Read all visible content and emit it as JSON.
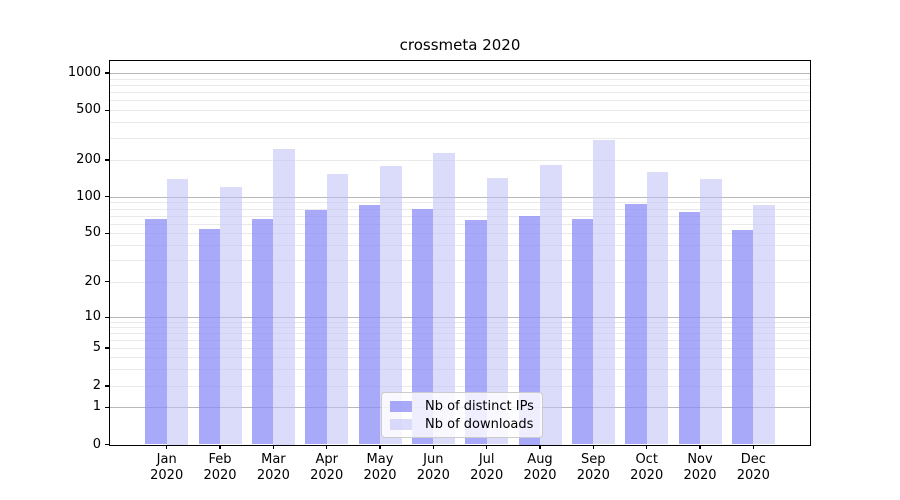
{
  "chart_data": {
    "type": "bar",
    "title": "crossmeta 2020",
    "x": {
      "categories": [
        "Jan",
        "Feb",
        "Mar",
        "Apr",
        "May",
        "Jun",
        "Jul",
        "Aug",
        "Sep",
        "Oct",
        "Nov",
        "Dec"
      ],
      "year": "2020"
    },
    "y_axis": {
      "scale": "symlog",
      "ticks": [
        0,
        1,
        2,
        5,
        10,
        20,
        50,
        100,
        200,
        500,
        1000
      ],
      "range": [
        0,
        1000
      ],
      "grid": "on"
    },
    "series": [
      {
        "name": "Nb of distinct IPs",
        "color": "rgba(140,140,248,0.75)",
        "values": [
          66,
          54,
          66,
          78,
          85,
          79,
          64,
          70,
          66,
          87,
          75,
          53
        ]
      },
      {
        "name": "Nb of downloads",
        "color": "rgba(190,190,245,0.55)",
        "values": [
          141,
          121,
          245,
          153,
          179,
          227,
          143,
          182,
          290,
          160,
          139,
          85
        ]
      }
    ],
    "legend": {
      "position": "lower center",
      "items": [
        "Nb of distinct IPs",
        "Nb of downloads"
      ]
    },
    "grid_colors": {
      "major": "#b8b8b8",
      "minor": "#eaeaea"
    }
  }
}
